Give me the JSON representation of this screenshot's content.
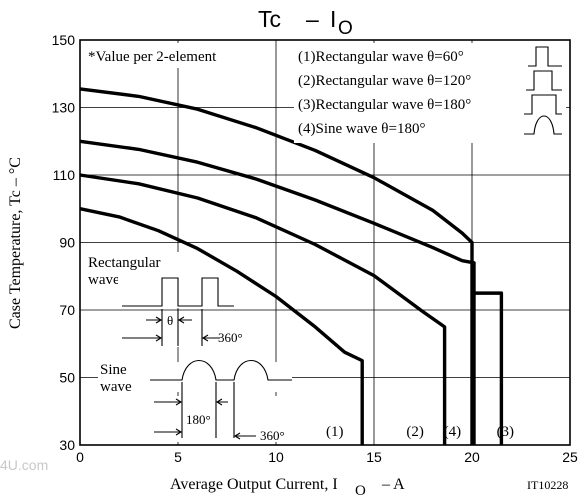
{
  "chart_data": {
    "type": "line",
    "title_main": "Tc",
    "title_dash": "–",
    "title_sym": "I",
    "title_sub": "O",
    "xlabel_main": "Average Output Current, I",
    "xlabel_sub": "O",
    "xlabel_unit": "–  A",
    "ylabel": "Case Temperature, Tc  –   °C",
    "xlim": [
      0,
      25
    ],
    "ylim": [
      30,
      150
    ],
    "xticks": [
      0,
      5,
      10,
      15,
      20,
      25
    ],
    "yticks": [
      30,
      50,
      70,
      90,
      110,
      130,
      150
    ],
    "grid": true,
    "note": "*Value per 2-element",
    "code": "IT10228",
    "legend": [
      "(1)Rectangular wave θ=60°",
      "(2)Rectangular wave θ=120°",
      "(3)Rectangular wave θ=180°",
      "(4)Sine wave θ=180°"
    ],
    "series": [
      {
        "name": "(1)",
        "x": [
          0,
          2,
          4,
          6,
          8,
          10,
          12,
          13.5,
          14.4,
          14.4
        ],
        "y": [
          100,
          97.6,
          93.5,
          88.2,
          81.5,
          74,
          65,
          57.5,
          55,
          30
        ]
      },
      {
        "name": "(2)",
        "x": [
          0,
          3,
          6,
          9,
          12,
          15,
          17.5,
          18.6,
          18.6
        ],
        "y": [
          110,
          107.4,
          103.2,
          97.3,
          89.4,
          80.2,
          69.5,
          65,
          30
        ]
      },
      {
        "name": "(4)",
        "x": [
          0,
          3,
          6,
          9,
          12,
          15,
          18,
          19.5,
          20.1,
          20.1
        ],
        "y": [
          120,
          117.6,
          113.8,
          108.8,
          102.6,
          95.7,
          88.5,
          84.6,
          84,
          30
        ]
      },
      {
        "name": "(3)",
        "x": [
          0,
          3,
          6,
          9,
          12,
          15,
          18,
          19.5,
          20,
          20
        ],
        "y": [
          135.5,
          133.3,
          129.5,
          124,
          117.3,
          109.2,
          99.5,
          92.8,
          90,
          30
        ]
      }
    ],
    "series_end_labels": [
      {
        "name": "(1)",
        "x": 13
      },
      {
        "name": "(2)",
        "x": 17.1
      },
      {
        "name": "(4)",
        "x": 19
      },
      {
        "name": "(3)",
        "x": 21.7
      }
    ],
    "step_drop": {
      "from_x": 20,
      "to_x": 21.5,
      "y": 75
    },
    "inset": {
      "rect_title_line1": "Rectangular",
      "rect_title_line2": "wave",
      "sine_title_line1": "Sine",
      "sine_title_line2": "wave",
      "theta": "θ",
      "rect_period": "360°",
      "sine_half": "180°",
      "sine_period": "360°"
    },
    "watermark": "4U.com"
  }
}
